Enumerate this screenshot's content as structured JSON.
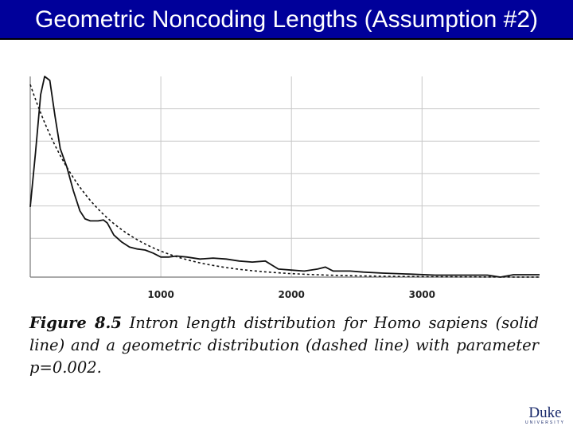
{
  "slide": {
    "title": "Geometric Noncoding Lengths (Assumption #2)",
    "title_bg": "#00009a",
    "title_color": "#ffffff"
  },
  "caption": {
    "figure_label": "Figure 8.5",
    "text": " Intron length distribution for Homo sapiens (solid line) and a geometric distribution (dashed line) with parameter p=0.002."
  },
  "logo": {
    "word": "Duke",
    "sub": "UNIVERSITY"
  },
  "chart_data": {
    "type": "line",
    "title": "",
    "xlabel": "",
    "ylabel": "",
    "x_ticks": [
      1000,
      2000,
      3000
    ],
    "xlim": [
      0,
      3900
    ],
    "ylim": [
      0,
      1
    ],
    "grid": true,
    "legend": "none",
    "series": [
      {
        "style": "solid",
        "points": [
          [
            0,
            0.35
          ],
          [
            40,
            0.62
          ],
          [
            80,
            0.91
          ],
          [
            110,
            1.0
          ],
          [
            150,
            0.98
          ],
          [
            190,
            0.8
          ],
          [
            230,
            0.64
          ],
          [
            280,
            0.55
          ],
          [
            330,
            0.43
          ],
          [
            380,
            0.33
          ],
          [
            420,
            0.29
          ],
          [
            460,
            0.28
          ],
          [
            520,
            0.28
          ],
          [
            560,
            0.285
          ],
          [
            590,
            0.27
          ],
          [
            640,
            0.21
          ],
          [
            700,
            0.175
          ],
          [
            760,
            0.15
          ],
          [
            820,
            0.14
          ],
          [
            880,
            0.135
          ],
          [
            940,
            0.12
          ],
          [
            1000,
            0.1
          ],
          [
            1060,
            0.1
          ],
          [
            1120,
            0.105
          ],
          [
            1200,
            0.1
          ],
          [
            1300,
            0.09
          ],
          [
            1400,
            0.095
          ],
          [
            1500,
            0.09
          ],
          [
            1600,
            0.08
          ],
          [
            1700,
            0.075
          ],
          [
            1800,
            0.08
          ],
          [
            1850,
            0.06
          ],
          [
            1900,
            0.04
          ],
          [
            2000,
            0.035
          ],
          [
            2100,
            0.03
          ],
          [
            2200,
            0.04
          ],
          [
            2260,
            0.05
          ],
          [
            2320,
            0.03
          ],
          [
            2450,
            0.03
          ],
          [
            2550,
            0.025
          ],
          [
            2700,
            0.02
          ],
          [
            2900,
            0.015
          ],
          [
            3100,
            0.01
          ],
          [
            3300,
            0.01
          ],
          [
            3500,
            0.01
          ],
          [
            3600,
            0.0
          ],
          [
            3700,
            0.012
          ],
          [
            3900,
            0.012
          ]
        ]
      },
      {
        "style": "dashed",
        "geometric_p": 0.002
      }
    ]
  }
}
